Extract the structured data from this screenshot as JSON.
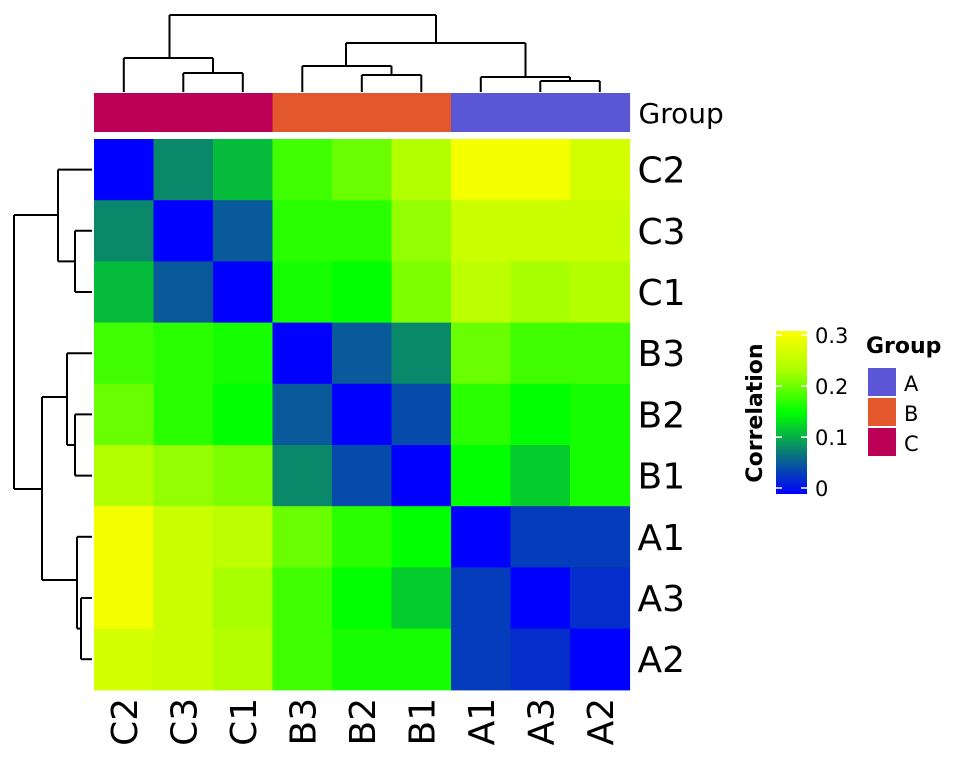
{
  "chart_data": {
    "type": "heatmap",
    "title": "",
    "rows": [
      "C2",
      "C3",
      "C1",
      "B3",
      "B2",
      "B1",
      "A1",
      "A3",
      "A2"
    ],
    "columns": [
      "C2",
      "C3",
      "C1",
      "B3",
      "B2",
      "B1",
      "A1",
      "A3",
      "A2"
    ],
    "values": [
      [
        0.0,
        0.09,
        0.12,
        0.19,
        0.21,
        0.25,
        0.31,
        0.31,
        0.28
      ],
      [
        0.09,
        0.0,
        0.06,
        0.18,
        0.18,
        0.23,
        0.27,
        0.27,
        0.27
      ],
      [
        0.12,
        0.06,
        0.0,
        0.17,
        0.16,
        0.22,
        0.26,
        0.24,
        0.25
      ],
      [
        0.19,
        0.18,
        0.17,
        0.0,
        0.06,
        0.09,
        0.21,
        0.19,
        0.19
      ],
      [
        0.21,
        0.18,
        0.16,
        0.06,
        0.0,
        0.05,
        0.18,
        0.16,
        0.17
      ],
      [
        0.25,
        0.23,
        0.22,
        0.09,
        0.05,
        0.0,
        0.16,
        0.13,
        0.17
      ],
      [
        0.31,
        0.27,
        0.26,
        0.21,
        0.18,
        0.16,
        0.0,
        0.04,
        0.04
      ],
      [
        0.31,
        0.27,
        0.24,
        0.19,
        0.16,
        0.13,
        0.04,
        0.0,
        0.03
      ],
      [
        0.28,
        0.27,
        0.25,
        0.19,
        0.17,
        0.17,
        0.04,
        0.03,
        0.0
      ]
    ],
    "column_groups": [
      "C",
      "C",
      "C",
      "B",
      "B",
      "B",
      "A",
      "A",
      "A"
    ],
    "annotation_label": "Group",
    "color_scale": {
      "title": "Correlation",
      "min": 0,
      "max": 0.32,
      "ticks": [
        "0",
        "0.1",
        "0.2",
        "0.3"
      ],
      "tick_values": [
        0,
        0.1,
        0.2,
        0.3
      ],
      "stops": [
        {
          "value": 0.0,
          "color": "#0000ff"
        },
        {
          "value": 0.08,
          "color": "#0a7878"
        },
        {
          "value": 0.16,
          "color": "#00ff00"
        },
        {
          "value": 0.24,
          "color": "#a8ff00"
        },
        {
          "value": 0.32,
          "color": "#ffff00"
        }
      ]
    },
    "group_legend": {
      "title": "Group",
      "items": [
        {
          "label": "A",
          "color": "#5b56d6"
        },
        {
          "label": "B",
          "color": "#e3572c"
        },
        {
          "label": "C",
          "color": "#bc0056"
        }
      ]
    },
    "dendrogram": "hierarchical clustering shown on rows and columns",
    "legend_position": "right"
  }
}
